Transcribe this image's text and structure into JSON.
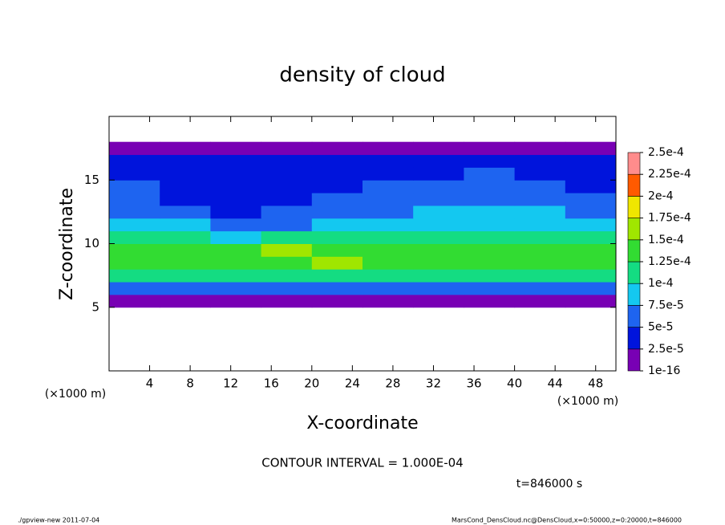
{
  "chart_data": {
    "type": "contour",
    "title": "density of cloud",
    "x_label": "X-coordinate",
    "y_label": "Z-coordinate",
    "x_unit": "(×1000 m)",
    "y_unit": "(×1000 m)",
    "contour_note": "CONTOUR INTERVAL = 1.000E-04",
    "time_label": "t=846000 s",
    "footer_left": "./gpview-new  2011-07-04",
    "footer_right": "MarsCond_DensCloud.nc@DensCloud,x=0:50000,z=0:20000,t=846000",
    "xlim": [
      0,
      50
    ],
    "ylim": [
      0,
      20
    ],
    "xticks": [
      4,
      8,
      12,
      16,
      20,
      24,
      28,
      32,
      36,
      40,
      44,
      48
    ],
    "yticks": [
      5,
      10,
      15
    ],
    "x": [
      2.5,
      7.5,
      12.5,
      17.5,
      22.5,
      27.5,
      32.5,
      37.5,
      42.5,
      47.5
    ],
    "z": [
      5.5,
      6.5,
      7.5,
      8.5,
      9.5,
      10.5,
      11.5,
      12.5,
      13.5,
      14.5,
      15.5,
      16.5,
      17.5
    ],
    "values": [
      [
        1.2e-05,
        1e-05,
        1.1e-05,
        1.3e-05,
        1e-05,
        1.2e-05,
        1.1e-05,
        1.4e-05,
        1e-05,
        1.2e-05
      ],
      [
        5.5e-05,
        6e-05,
        5e-05,
        5.5e-05,
        6.5e-05,
        6e-05,
        5e-05,
        5.5e-05,
        6e-05,
        6.5e-05
      ],
      [
        0.000105,
        0.00011,
        0.000115,
        0.00011,
        0.00012,
        0.000115,
        0.000105,
        0.00011,
        0.000115,
        0.00011
      ],
      [
        0.00013,
        0.000135,
        0.00014,
        0.000145,
        0.000152,
        0.000145,
        0.00014,
        0.000135,
        0.00013,
        0.000135
      ],
      [
        0.00013,
        0.000135,
        0.00014,
        0.00015,
        0.000145,
        0.00014,
        0.000135,
        0.00013,
        0.00013,
        0.000125
      ],
      [
        0.000105,
        0.0001,
        9e-05,
        0.0001,
        0.000105,
        0.000102,
        0.000105,
        0.000108,
        0.00011,
        0.000105
      ],
      [
        8e-05,
        7.5e-05,
        6.5e-05,
        7e-05,
        8e-05,
        8.5e-05,
        8e-05,
        8.5e-05,
        9e-05,
        8.5e-05
      ],
      [
        6.5e-05,
        5e-05,
        4.5e-05,
        5e-05,
        6e-05,
        7e-05,
        7.5e-05,
        8e-05,
        8e-05,
        7e-05
      ],
      [
        5.5e-05,
        4e-05,
        3.5e-05,
        4e-05,
        5e-05,
        5.5e-05,
        6e-05,
        7e-05,
        6.5e-05,
        5.5e-05
      ],
      [
        5e-05,
        4e-05,
        3.5e-05,
        4e-05,
        4.5e-05,
        5e-05,
        5e-05,
        5.5e-05,
        5e-05,
        4.5e-05
      ],
      [
        4.5e-05,
        4e-05,
        3.5e-05,
        4e-05,
        4e-05,
        4.5e-05,
        4.5e-05,
        5e-05,
        4.5e-05,
        4e-05
      ],
      [
        3e-05,
        2.8e-05,
        3e-05,
        2.8e-05,
        3e-05,
        3e-05,
        2.8e-05,
        3e-05,
        3e-05,
        2.8e-05
      ],
      [
        1.2e-05,
        1.1e-05,
        1.3e-05,
        1e-05,
        1.2e-05,
        1.1e-05,
        1.2e-05,
        1e-05,
        1.3e-05,
        1.1e-05
      ]
    ],
    "levels": [
      {
        "value": 1e-16,
        "label": "1e-16"
      },
      {
        "value": 2.5e-05,
        "label": "2.5e-5"
      },
      {
        "value": 5e-05,
        "label": "5e-5"
      },
      {
        "value": 7.5e-05,
        "label": "7.5e-5"
      },
      {
        "value": 0.0001,
        "label": "1e-4"
      },
      {
        "value": 0.000125,
        "label": "1.25e-4"
      },
      {
        "value": 0.00015,
        "label": "1.5e-4"
      },
      {
        "value": 0.000175,
        "label": "1.75e-4"
      },
      {
        "value": 0.0002,
        "label": "2e-4"
      },
      {
        "value": 0.000225,
        "label": "2.25e-4"
      },
      {
        "value": 0.00025,
        "label": "2.5e-4"
      }
    ],
    "colors": [
      "#7800b4",
      "#0014dc",
      "#1e64f0",
      "#14c8f0",
      "#14dc82",
      "#32dc32",
      "#a0e600",
      "#f0e600",
      "#ff5a00",
      "#ff8c8c"
    ]
  }
}
